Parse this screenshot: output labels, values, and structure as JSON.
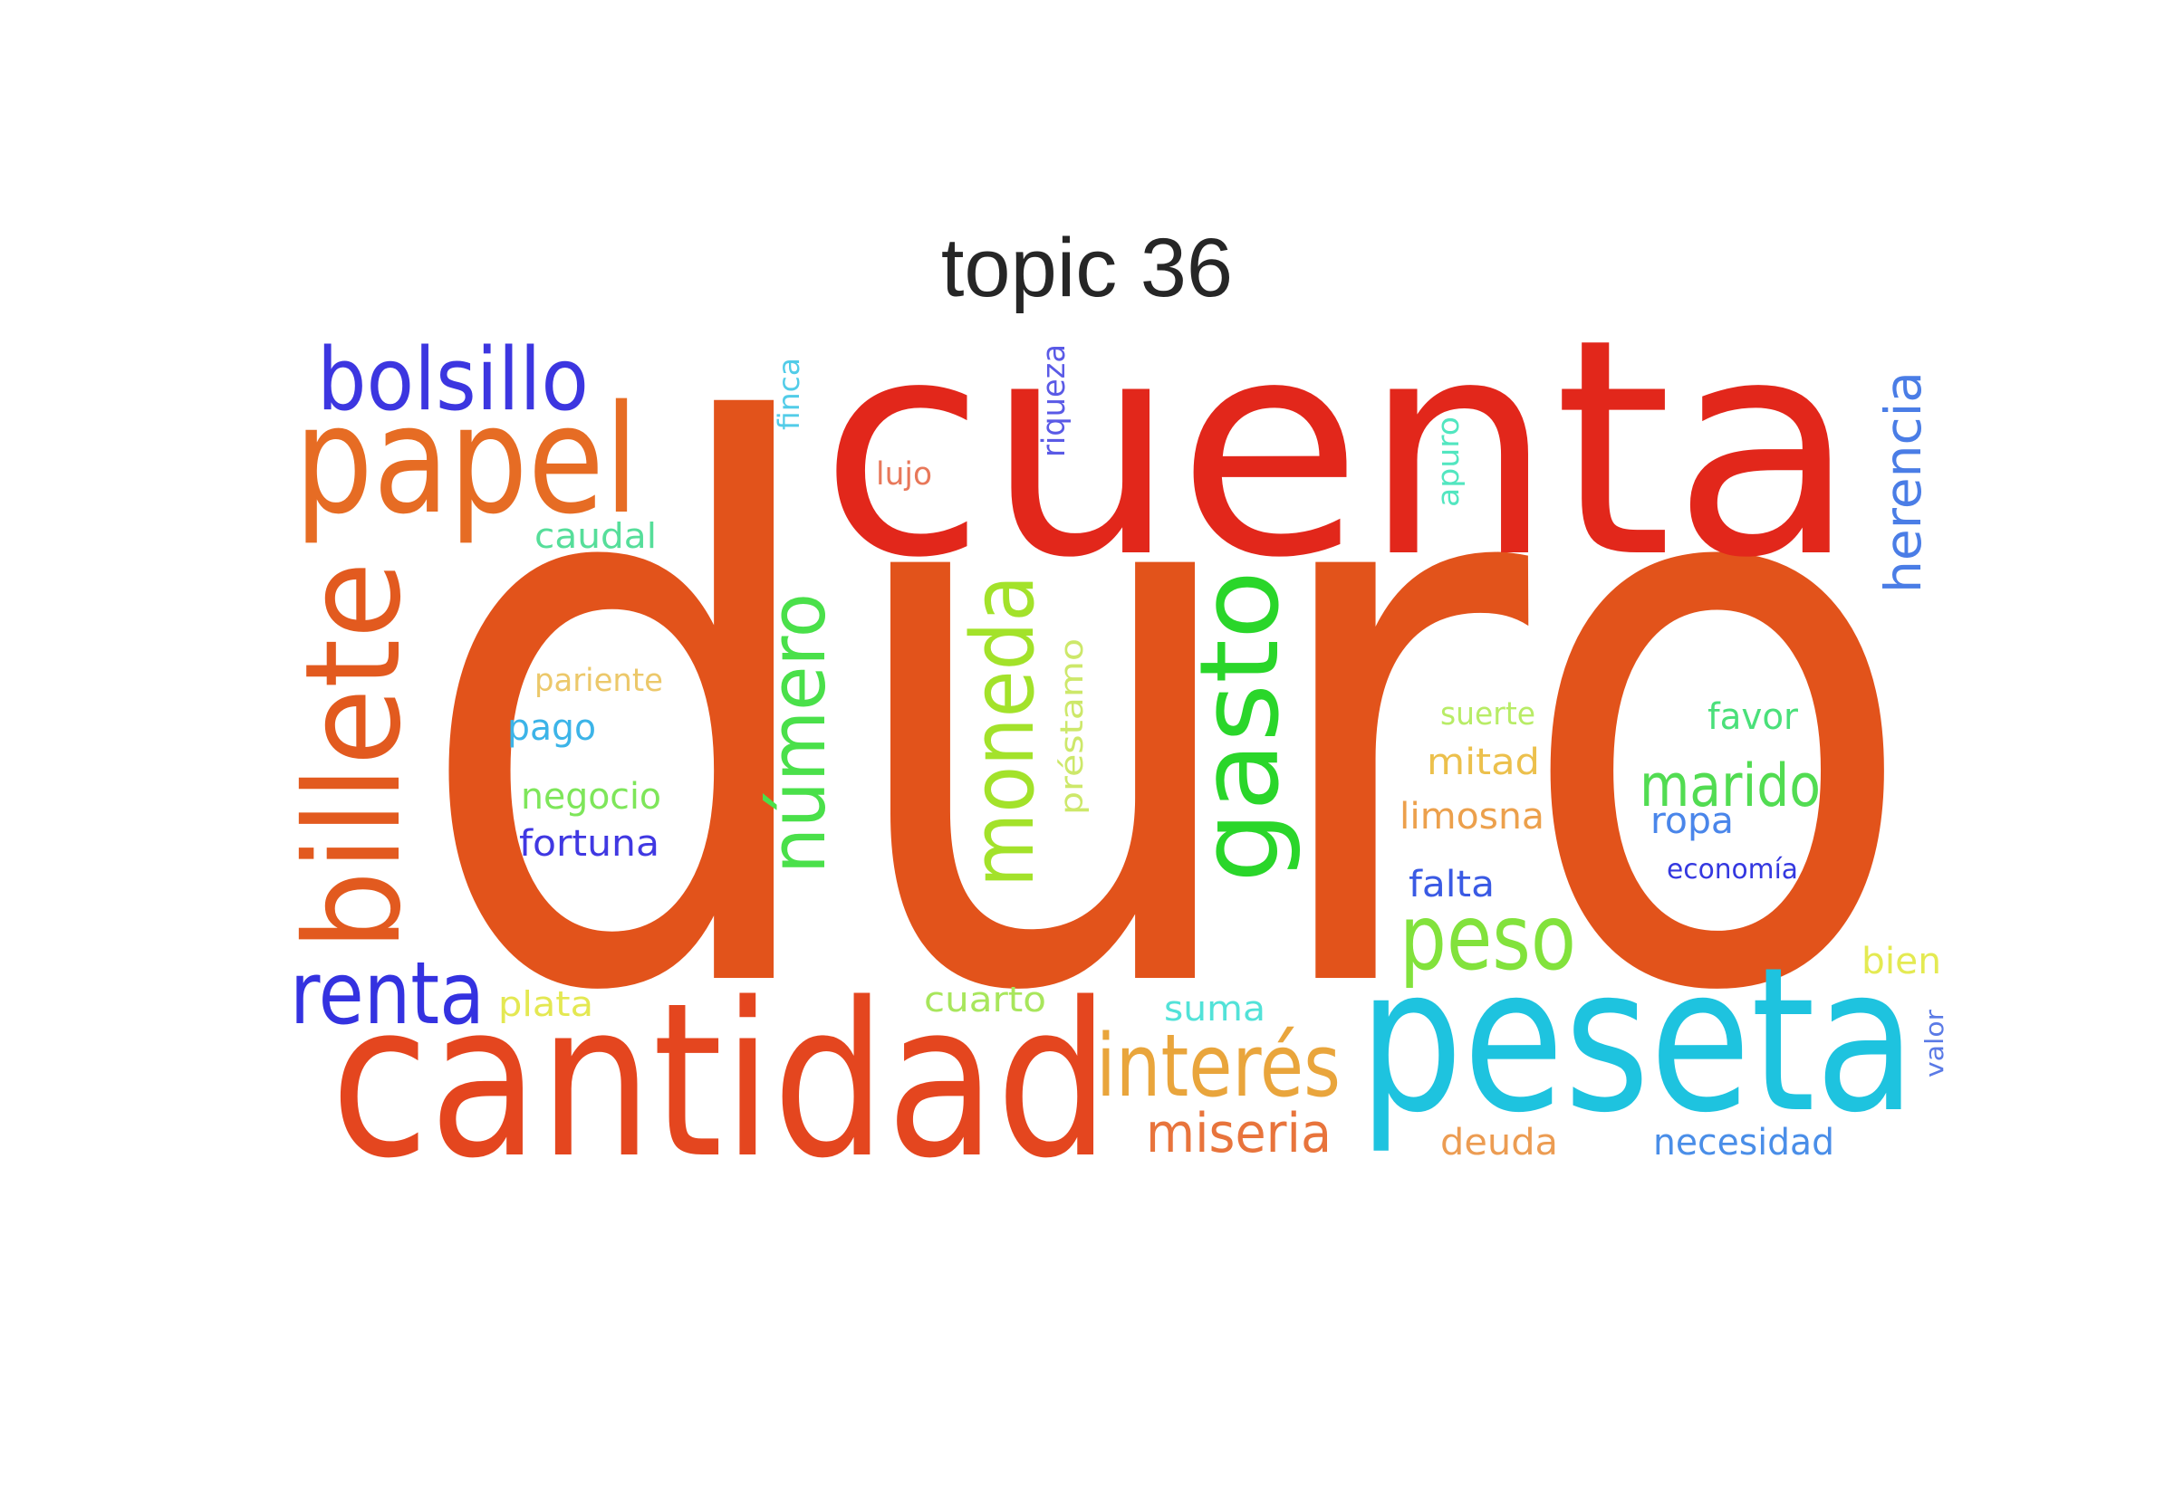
{
  "title": "topic 36",
  "words": [
    {
      "text": "duro",
      "color": "#e2531b"
    },
    {
      "text": "cuenta",
      "color": "#e2271b"
    },
    {
      "text": "cantidad",
      "color": "#e4461f"
    },
    {
      "text": "peseta",
      "color": "#1ec3df"
    },
    {
      "text": "billete",
      "color": "#e25a1f"
    },
    {
      "text": "papel",
      "color": "#e66c24"
    },
    {
      "text": "bolsillo",
      "color": "#3c36e0"
    },
    {
      "text": "gasto",
      "color": "#2ad62a"
    },
    {
      "text": "moneda",
      "color": "#a3e22a"
    },
    {
      "text": "número",
      "color": "#4ae04a"
    },
    {
      "text": "renta",
      "color": "#3432e0"
    },
    {
      "text": "interés",
      "color": "#e9a53c"
    },
    {
      "text": "peso",
      "color": "#82e23c"
    },
    {
      "text": "marido",
      "color": "#52dc52"
    },
    {
      "text": "herencia",
      "color": "#4a7de6"
    },
    {
      "text": "miseria",
      "color": "#e8743c"
    },
    {
      "text": "préstamo",
      "color": "#cde86a"
    },
    {
      "text": "caudal",
      "color": "#56de9a"
    },
    {
      "text": "pariente",
      "color": "#ecc86a"
    },
    {
      "text": "pago",
      "color": "#3cb4e8"
    },
    {
      "text": "negocio",
      "color": "#7ee65a"
    },
    {
      "text": "fortuna",
      "color": "#4038e2"
    },
    {
      "text": "suerte",
      "color": "#b8ec66"
    },
    {
      "text": "favor",
      "color": "#4ae07a"
    },
    {
      "text": "mitad",
      "color": "#ecc04c"
    },
    {
      "text": "limosna",
      "color": "#eca04c"
    },
    {
      "text": "ropa",
      "color": "#4a86ea"
    },
    {
      "text": "economía",
      "color": "#3438e0"
    },
    {
      "text": "falta",
      "color": "#3a5ae4"
    },
    {
      "text": "bien",
      "color": "#e4ea52"
    },
    {
      "text": "plata",
      "color": "#e4e852"
    },
    {
      "text": "cuarto",
      "color": "#a8e65c"
    },
    {
      "text": "suma",
      "color": "#52e2d8"
    },
    {
      "text": "deuda",
      "color": "#ec9c52"
    },
    {
      "text": "necesidad",
      "color": "#4a8ee8"
    },
    {
      "text": "valor",
      "color": "#5a7ae6"
    },
    {
      "text": "finca",
      "color": "#52cce8"
    },
    {
      "text": "riqueza",
      "color": "#5a5ae6"
    },
    {
      "text": "lujo",
      "color": "#e8785a"
    },
    {
      "text": "apuro",
      "color": "#52e6c0"
    }
  ]
}
